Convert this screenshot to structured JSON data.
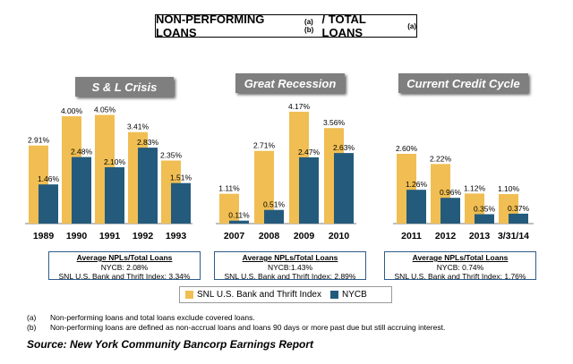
{
  "title": {
    "main": "NON-PERFORMING LOANS",
    "sup1": "(a)(b)",
    "tail": "/ TOTAL LOANS",
    "sup2": "(a)"
  },
  "colors": {
    "snl": "#F0BE52",
    "nycb": "#245B7C"
  },
  "legend": {
    "snl": "SNL U.S. Bank and Thrift Index",
    "nycb": "NYCB"
  },
  "chart_data": [
    {
      "type": "bar",
      "title": "S & L Crisis",
      "categories": [
        "1989",
        "1990",
        "1991",
        "1992",
        "1993"
      ],
      "series": [
        {
          "name": "SNL U.S. Bank and Thrift Index",
          "values": [
            2.91,
            4.0,
            4.05,
            3.41,
            2.35
          ],
          "labels": [
            "2.91%",
            "4.00%",
            "4.05%",
            "3.41%",
            "2.35%"
          ]
        },
        {
          "name": "NYCB",
          "values": [
            1.46,
            2.48,
            2.1,
            2.83,
            1.51
          ],
          "labels": [
            "1.46%",
            "2.48%",
            "2.10%",
            "2.83%",
            "1.51%"
          ]
        }
      ],
      "average": {
        "title": "Average NPLs/Total Loans",
        "nycb": "NYCB: 2.08%",
        "snl": "SNL U.S. Bank and Thrift Index: 3.34%"
      }
    },
    {
      "type": "bar",
      "title": "Great Recession",
      "categories": [
        "2007",
        "2008",
        "2009",
        "2010"
      ],
      "series": [
        {
          "name": "SNL U.S. Bank and Thrift Index",
          "values": [
            1.11,
            2.71,
            4.17,
            3.56
          ],
          "labels": [
            "1.11%",
            "2.71%",
            "4.17%",
            "3.56%"
          ]
        },
        {
          "name": "NYCB",
          "values": [
            0.11,
            0.51,
            2.47,
            2.63
          ],
          "labels": [
            "0.11%",
            "0.51%",
            "2.47%",
            "2.63%"
          ]
        }
      ],
      "average": {
        "title": "Average NPLs/Total Loans",
        "nycb": "NYCB:1.43%",
        "snl": "SNL U.S. Bank and Thrift Index: 2.89%"
      }
    },
    {
      "type": "bar",
      "title": "Current Credit Cycle",
      "categories": [
        "2011",
        "2012",
        "2013",
        "3/31/14"
      ],
      "series": [
        {
          "name": "SNL U.S. Bank and Thrift Index",
          "values": [
            2.6,
            2.22,
            1.12,
            1.1
          ],
          "labels": [
            "2.60%",
            "2.22%",
            "1.12%",
            "1.10%"
          ]
        },
        {
          "name": "NYCB",
          "values": [
            1.26,
            0.96,
            0.35,
            0.37
          ],
          "labels": [
            "1.26%",
            "0.96%",
            "0.35%",
            "0.37%"
          ]
        }
      ],
      "average": {
        "title": "Average NPLs/Total Loans",
        "nycb": "NYCB: 0.74%",
        "snl": "SNL U.S. Bank and Thrift Index: 1.76%"
      }
    }
  ],
  "footnotes": [
    {
      "key": "(a)",
      "text": "Non-performing loans and total loans exclude covered loans."
    },
    {
      "key": "(b)",
      "text": "Non-performing loans are defined as non-accrual loans and loans 90 days or more past due but still accruing interest."
    }
  ],
  "source": "Source: New York Community Bancorp Earnings Report"
}
